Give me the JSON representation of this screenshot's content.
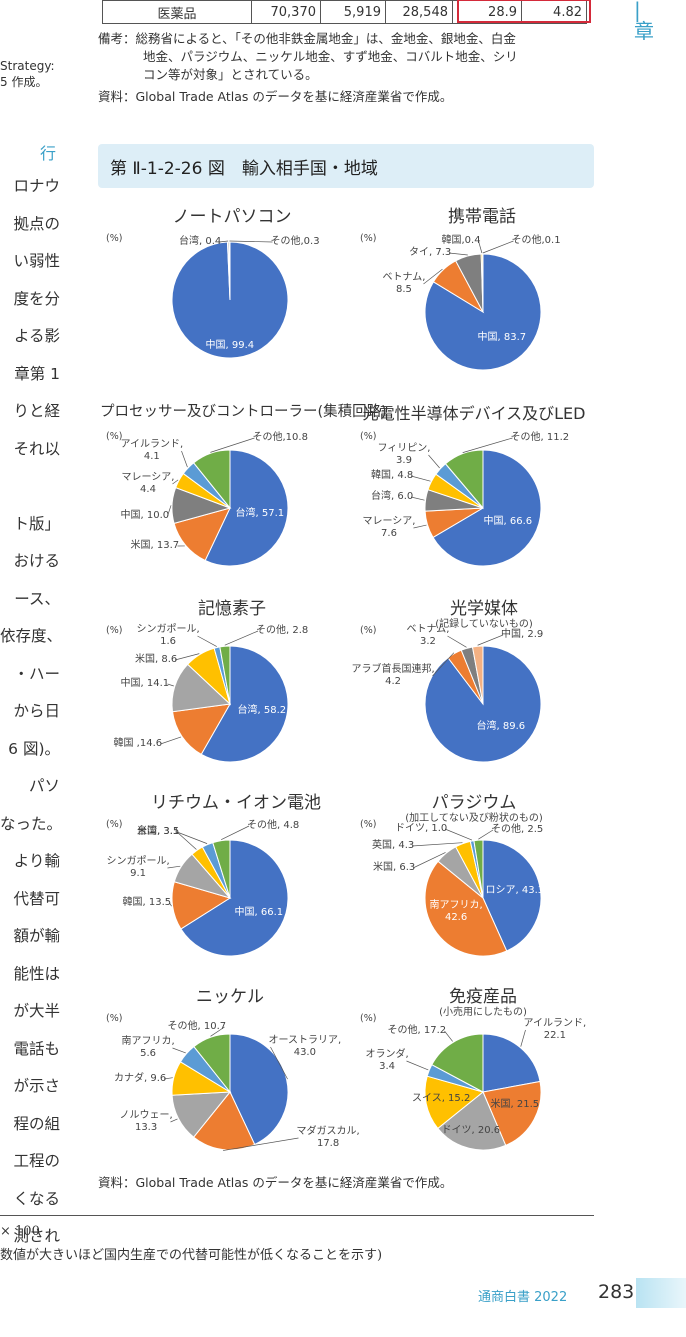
{
  "top_table": {
    "row": [
      "医薬品",
      "70,370",
      "5,919",
      "28,548",
      "28.9",
      "4.82"
    ]
  },
  "chapter_mark": "1\n章",
  "notes": {
    "note_label": "備考：",
    "note_text_1": "総務省によると、「その他非鉄金属地金」は、金地金、銀地金、白金",
    "note_text_2": "地金、パラジウム、ニッケル地金、すず地金、コバルト地金、シリ",
    "note_text_3": "コン等が対象」とされている。",
    "source_1": "資料：Global Trade Atlas のデータを基に経済産業省で作成。"
  },
  "left_fragments": {
    "top": [
      "Strategy:",
      "5 作成。"
    ],
    "heading": "行",
    "lines": [
      "ロナウ",
      "拠点の",
      "い弱性",
      "度を分",
      "よる影",
      "章第 1",
      "りと経",
      "それ以",
      "",
      "ト版」",
      "おける",
      "ース、",
      "依存度、",
      "・ハー",
      "から日",
      "6 図)。",
      "パソ",
      "なった。",
      "より輸",
      "代替可",
      "額が輸",
      "能性は",
      "が大半",
      "電話も",
      "が示さ",
      "程の組",
      "工程の",
      "くなる",
      "測され"
    ]
  },
  "figure_title": "第 Ⅱ-1-2-26 図　輸入相手国・地域",
  "pct_unit": "(%)",
  "charts": [
    {
      "title": "ノートパソコン",
      "subtitle": "",
      "slices": [
        {
          "label": "中国, 99.4",
          "value": 99.4,
          "color": "#4472c4"
        },
        {
          "label": "台湾, 0.4",
          "value": 0.4,
          "color": "#a5a5a5"
        },
        {
          "label": "その他,0.3",
          "value": 0.3,
          "color": "#70ad47"
        }
      ]
    },
    {
      "title": "携帯電話",
      "subtitle": "",
      "slices": [
        {
          "label": "中国, 83.7",
          "value": 83.7,
          "color": "#4472c4"
        },
        {
          "label": "ベトナム, 8.5",
          "value": 8.5,
          "color": "#ed7d31"
        },
        {
          "label": "タイ, 7.3",
          "value": 7.3,
          "color": "#7f7f7f"
        },
        {
          "label": "韓国,0.4",
          "value": 0.4,
          "color": "#ffc000"
        },
        {
          "label": "その他,0.1",
          "value": 0.1,
          "color": "#70ad47"
        }
      ]
    },
    {
      "title": "プロセッサー及びコントローラー(集積回路)",
      "subtitle": "",
      "slices": [
        {
          "label": "台湾, 57.1",
          "value": 57.1,
          "color": "#4472c4"
        },
        {
          "label": "米国, 13.7",
          "value": 13.7,
          "color": "#ed7d31"
        },
        {
          "label": "中国, 10.0",
          "value": 10.0,
          "color": "#7f7f7f"
        },
        {
          "label": "マレーシア, 4.4",
          "value": 4.4,
          "color": "#ffc000"
        },
        {
          "label": "アイルランド, 4.1",
          "value": 4.1,
          "color": "#5b9bd5"
        },
        {
          "label": "その他,10.8",
          "value": 10.8,
          "color": "#70ad47"
        }
      ]
    },
    {
      "title": "光電性半導体デバイス及びLED",
      "subtitle": "",
      "slices": [
        {
          "label": "中国, 66.6",
          "value": 66.6,
          "color": "#4472c4"
        },
        {
          "label": "マレーシア, 7.6",
          "value": 7.6,
          "color": "#ed7d31"
        },
        {
          "label": "台湾, 6.0",
          "value": 6.0,
          "color": "#7f7f7f"
        },
        {
          "label": "韓国, 4.8",
          "value": 4.8,
          "color": "#ffc000"
        },
        {
          "label": "フィリピン, 3.9",
          "value": 3.9,
          "color": "#5b9bd5"
        },
        {
          "label": "その他, 11.2",
          "value": 11.2,
          "color": "#70ad47"
        }
      ]
    },
    {
      "title": "記憶素子",
      "subtitle": "",
      "slices": [
        {
          "label": "台湾, 58.2",
          "value": 58.2,
          "color": "#4472c4"
        },
        {
          "label": "韓国 ,14.6",
          "value": 14.6,
          "color": "#ed7d31"
        },
        {
          "label": "中国, 14.1",
          "value": 14.1,
          "color": "#a5a5a5"
        },
        {
          "label": "米国, 8.6",
          "value": 8.6,
          "color": "#ffc000"
        },
        {
          "label": "シンガポール, 1.6",
          "value": 1.6,
          "color": "#5b9bd5"
        },
        {
          "label": "その他, 2.8",
          "value": 2.8,
          "color": "#70ad47"
        }
      ]
    },
    {
      "title": "光学媒体",
      "subtitle": "(記録していないもの)",
      "slices": [
        {
          "label": "台湾, 89.6",
          "value": 89.6,
          "color": "#4472c4"
        },
        {
          "label": "アラブ首長国連邦, 4.2",
          "value": 4.2,
          "color": "#ed7d31"
        },
        {
          "label": "ベトナム, 3.2",
          "value": 3.2,
          "color": "#7f7f7f"
        },
        {
          "label": "中国, 2.9",
          "value": 2.9,
          "color": "#f4b183"
        }
      ]
    },
    {
      "title": "リチウム・イオン電池",
      "subtitle": "",
      "slices": [
        {
          "label": "中国, 66.1",
          "value": 66.1,
          "color": "#4472c4"
        },
        {
          "label": "韓国, 13.5",
          "value": 13.5,
          "color": "#ed7d31"
        },
        {
          "label": "シンガポール, 9.1",
          "value": 9.1,
          "color": "#a5a5a5"
        },
        {
          "label": "台湾, 3.5",
          "value": 3.5,
          "color": "#ffc000"
        },
        {
          "label": "米国, 3.1",
          "value": 3.1,
          "color": "#5b9bd5"
        },
        {
          "label": "その他, 4.8",
          "value": 4.8,
          "color": "#70ad47"
        }
      ]
    },
    {
      "title": "パラジウム",
      "subtitle": "(加工してない及び粉状のもの)",
      "slices": [
        {
          "label": "ロシア, 43.3",
          "value": 43.3,
          "color": "#4472c4"
        },
        {
          "label": "南アフリカ, 42.6",
          "value": 42.6,
          "color": "#ed7d31"
        },
        {
          "label": "米国, 6.3",
          "value": 6.3,
          "color": "#a5a5a5"
        },
        {
          "label": "英国, 4.3",
          "value": 4.3,
          "color": "#ffc000"
        },
        {
          "label": "ドイツ, 1.0",
          "value": 1.0,
          "color": "#5b9bd5"
        },
        {
          "label": "その他, 2.5",
          "value": 2.5,
          "color": "#70ad47"
        }
      ]
    },
    {
      "title": "ニッケル",
      "subtitle": "",
      "slices": [
        {
          "label": "オーストラリア, 43.0",
          "value": 43.0,
          "color": "#4472c4"
        },
        {
          "label": "マダガスカル, 17.8",
          "value": 17.8,
          "color": "#ed7d31"
        },
        {
          "label": "ノルウェー, 13.3",
          "value": 13.3,
          "color": "#a5a5a5"
        },
        {
          "label": "カナダ, 9.6",
          "value": 9.6,
          "color": "#ffc000"
        },
        {
          "label": "南アフリカ, 5.6",
          "value": 5.6,
          "color": "#5b9bd5"
        },
        {
          "label": "その他, 10.7",
          "value": 10.7,
          "color": "#70ad47"
        }
      ]
    },
    {
      "title": "免疫産品",
      "subtitle": "(小売用にしたもの)",
      "slices": [
        {
          "label": "アイルランド, 22.1",
          "value": 22.1,
          "color": "#4472c4"
        },
        {
          "label": "米国, 21.5",
          "value": 21.5,
          "color": "#ed7d31"
        },
        {
          "label": "ドイツ, 20.6",
          "value": 20.6,
          "color": "#a5a5a5"
        },
        {
          "label": "スイス, 15.2",
          "value": 15.2,
          "color": "#ffc000"
        },
        {
          "label": "オランダ, 3.4",
          "value": 3.4,
          "color": "#5b9bd5"
        },
        {
          "label": "その他, 17.2",
          "value": 17.2,
          "color": "#70ad47"
        }
      ]
    }
  ],
  "source_2": "資料：Global Trade Atlas のデータを基に経済産業省で作成。",
  "formula_1": "× 100",
  "formula_2": "数値が大きいほど国内生産での代替可能性が低くなることを示す)",
  "footer": {
    "book": "通商白書 2022",
    "page": "283"
  }
}
